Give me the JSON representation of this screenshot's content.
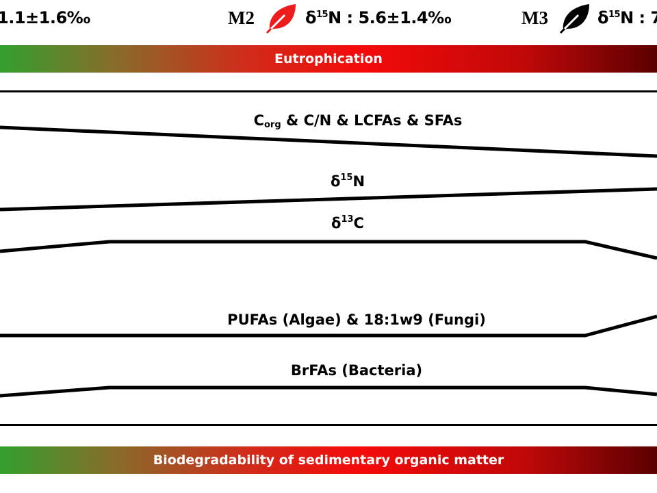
{
  "header": {
    "m1_value": "1.1±1.6‰",
    "m2_label": "M2",
    "m2_delta": "δ",
    "m2_iso": "15",
    "m2_value": "N : 5.6±1.4‰",
    "m2_leaf_color": "#ee1c1c",
    "m3_label": "M3",
    "m3_delta": "δ",
    "m3_iso": "15",
    "m3_value": "N : 7",
    "m3_leaf_color": "#000000"
  },
  "top_bar": {
    "label": "Eutrophication"
  },
  "bottom_bar": {
    "label": "Biodegradability of sedimentary organic matter"
  },
  "curves": {
    "corg": {
      "c": "C",
      "sub": "org",
      "rest": " & C/N & LCFAs & SFAs"
    },
    "d15n": {
      "delta": "δ",
      "iso": "15",
      "el": "N"
    },
    "d13c": {
      "delta": "δ",
      "iso": "13",
      "el": "C"
    },
    "pufa": {
      "text": "PUFAs (Algae) & 18:1w9 (Fungi)"
    },
    "brfa": {
      "text": "BrFAs (Bacteria)"
    }
  },
  "colors": {
    "gradient_start": "#33a02c",
    "gradient_mid": "#f50a0a",
    "gradient_end": "#5a0000"
  }
}
